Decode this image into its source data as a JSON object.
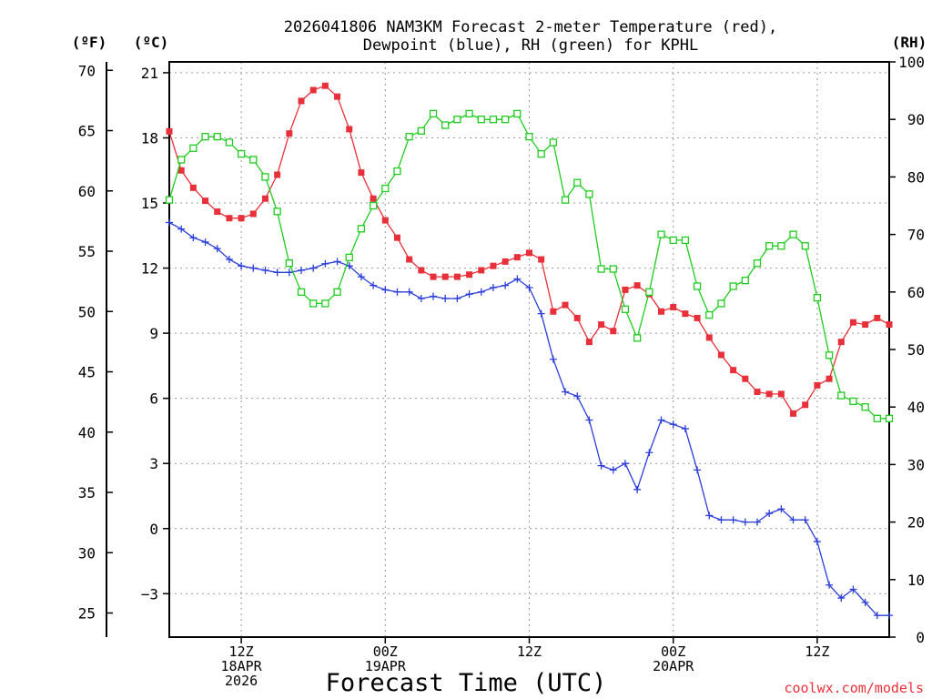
{
  "chart_data": {
    "type": "line",
    "title_line1": "2026041806 NAM3KM Forecast 2-meter Temperature (red),",
    "title_line2": "Dewpoint (blue), RH (green) for KPHL",
    "xlabel": "Forecast Time (UTC)",
    "credit": "coolwx.com/models",
    "units": {
      "fahrenheit": "(ºF)",
      "celsius": "(ºC)",
      "rh": "(RH)"
    },
    "x_hours": [
      0,
      1,
      2,
      3,
      4,
      5,
      6,
      7,
      8,
      9,
      10,
      11,
      12,
      13,
      14,
      15,
      16,
      17,
      18,
      19,
      20,
      21,
      22,
      23,
      24,
      25,
      26,
      27,
      28,
      29,
      30,
      31,
      32,
      33,
      34,
      35,
      36,
      37,
      38,
      39,
      40,
      41,
      42,
      43,
      44,
      45,
      46,
      47,
      48,
      49,
      50,
      51,
      52,
      53,
      54,
      55,
      56,
      57,
      58,
      59,
      60
    ],
    "xlim_hours": [
      0,
      60
    ],
    "xticks": [
      {
        "hour": 6,
        "lines": [
          "12Z",
          "18APR",
          "2026"
        ]
      },
      {
        "hour": 18,
        "lines": [
          "00Z",
          "19APR"
        ]
      },
      {
        "hour": 30,
        "lines": [
          "12Z"
        ]
      },
      {
        "hour": 42,
        "lines": [
          "00Z",
          "20APR"
        ]
      },
      {
        "hour": 54,
        "lines": [
          "12Z"
        ]
      }
    ],
    "y_celsius": {
      "lim": [
        -5,
        21.5
      ],
      "ticks": [
        21,
        18,
        15,
        12,
        9,
        6,
        3,
        0,
        -3
      ]
    },
    "y_fahrenheit": {
      "ticks": [
        70,
        65,
        60,
        55,
        50,
        45,
        40,
        35,
        30,
        25
      ]
    },
    "y_rh": {
      "lim": [
        0,
        100
      ],
      "ticks": [
        100,
        90,
        80,
        70,
        60,
        50,
        40,
        30,
        20,
        10,
        0
      ]
    },
    "series": [
      {
        "name": "2-meter Temperature",
        "axis": "celsius",
        "color": "#e8303a",
        "marker": "filled-square",
        "values": [
          18.3,
          16.5,
          15.7,
          15.1,
          14.6,
          14.3,
          14.3,
          14.5,
          15.2,
          16.3,
          18.2,
          19.7,
          20.2,
          20.4,
          19.9,
          18.4,
          16.4,
          15.2,
          14.2,
          13.4,
          12.4,
          11.9,
          11.6,
          11.6,
          11.6,
          11.7,
          11.9,
          12.1,
          12.3,
          12.5,
          12.7,
          12.4,
          10.0,
          10.3,
          9.7,
          8.6,
          9.4,
          9.1,
          11.0,
          11.2,
          10.8,
          10.0,
          10.2,
          9.9,
          9.7,
          8.8,
          8.0,
          7.3,
          6.9,
          6.3,
          6.2,
          6.2,
          5.3,
          5.7,
          6.6,
          6.9,
          8.6,
          9.5,
          9.4,
          9.7,
          9.4
        ]
      },
      {
        "name": "Dewpoint",
        "axis": "celsius",
        "color": "#2b3fd8",
        "marker": "plus",
        "values": [
          14.1,
          13.8,
          13.4,
          13.2,
          12.9,
          12.4,
          12.1,
          12.0,
          11.9,
          11.8,
          11.8,
          11.9,
          12.0,
          12.2,
          12.3,
          12.1,
          11.6,
          11.2,
          11.0,
          10.9,
          10.9,
          10.6,
          10.7,
          10.6,
          10.6,
          10.8,
          10.9,
          11.1,
          11.2,
          11.5,
          11.1,
          9.9,
          7.8,
          6.3,
          6.1,
          5.0,
          2.9,
          2.7,
          3.0,
          1.8,
          3.5,
          5.0,
          4.8,
          4.6,
          2.7,
          0.6,
          0.4,
          0.4,
          0.3,
          0.3,
          0.7,
          0.9,
          0.4,
          0.4,
          -0.6,
          -2.6,
          -3.2,
          -2.8,
          -3.4,
          -4.0,
          -4.0
        ]
      },
      {
        "name": "RH",
        "axis": "rh",
        "color": "#1fcc1f",
        "marker": "open-square",
        "values": [
          76,
          83,
          85,
          87,
          87,
          86,
          84,
          83,
          80,
          74,
          65,
          60,
          58,
          58,
          60,
          66,
          71,
          75,
          78,
          81,
          87,
          88,
          91,
          89,
          90,
          91,
          90,
          90,
          90,
          91,
          87,
          84,
          86,
          76,
          79,
          77,
          64,
          64,
          57,
          52,
          60,
          70,
          69,
          69,
          61,
          56,
          58,
          61,
          62,
          65,
          68,
          68,
          70,
          68,
          59,
          49,
          42,
          41,
          40,
          38,
          38
        ]
      }
    ]
  }
}
